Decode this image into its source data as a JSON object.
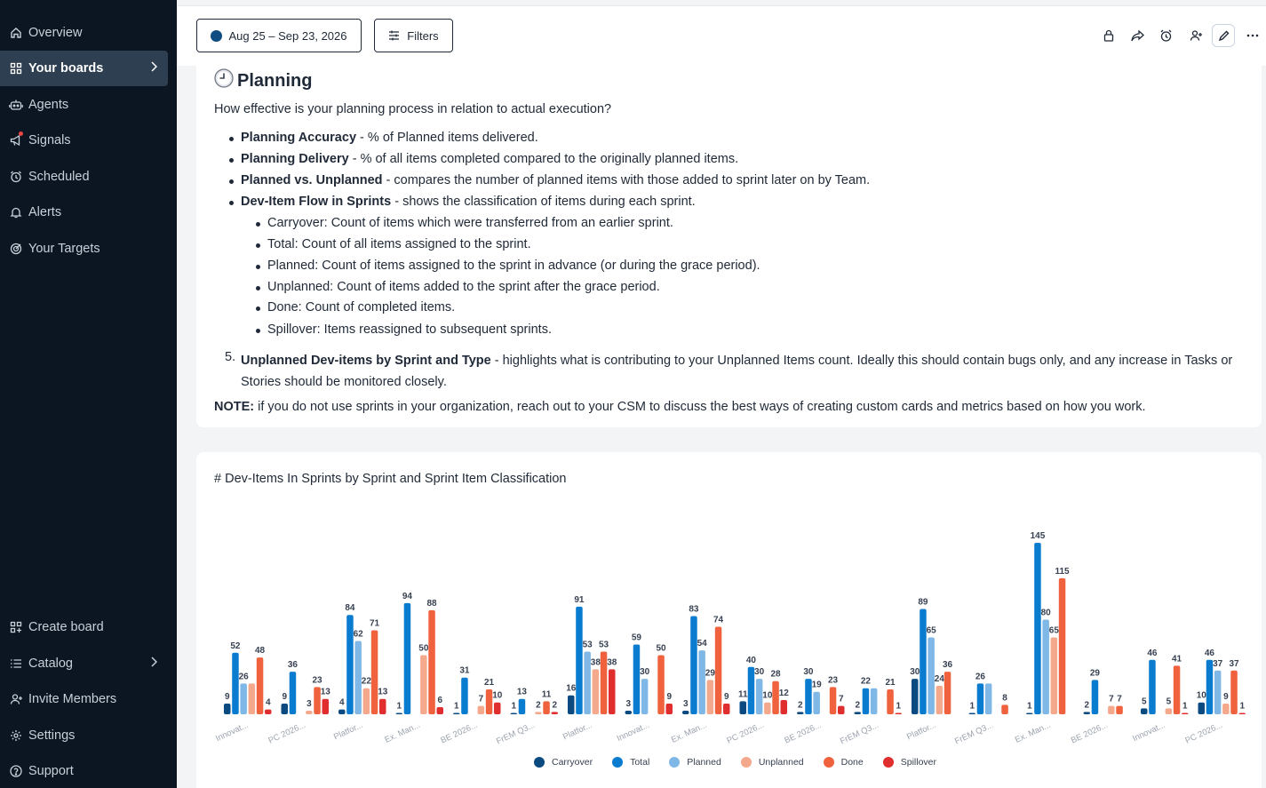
{
  "sidebar": {
    "items": [
      {
        "label": "Overview",
        "icon": "home-icon"
      },
      {
        "label": "Your boards",
        "icon": "grid-icon"
      },
      {
        "label": "Agents",
        "icon": "robot-icon"
      },
      {
        "label": "Signals",
        "icon": "megaphone-icon"
      },
      {
        "label": "Scheduled",
        "icon": "alarm-icon"
      },
      {
        "label": "Alerts",
        "icon": "bell-icon"
      },
      {
        "label": "Your Targets",
        "icon": "target-icon"
      }
    ],
    "bottom": [
      {
        "label": "Create board",
        "icon": "grid-plus-icon"
      },
      {
        "label": "Catalog",
        "icon": "list-icon"
      },
      {
        "label": "Invite Members",
        "icon": "user-plus-icon"
      },
      {
        "label": "Settings",
        "icon": "gear-icon"
      },
      {
        "label": "Support",
        "icon": "help-icon"
      }
    ]
  },
  "topbar": {
    "date_range": "Aug 25 – Sep 23, 2026",
    "filters_label": "Filters"
  },
  "planning": {
    "title": "Planning",
    "intro": "How effective is your planning process in relation to actual execution?",
    "bullets": [
      {
        "term": "Planning Accuracy",
        "desc": " - % of Planned items delivered."
      },
      {
        "term": "Planning Delivery",
        "desc": " - % of all items completed compared to the originally planned items."
      },
      {
        "term": "Planned vs. Unplanned",
        "desc": " - compares the number of planned items with those added to sprint later on by Team."
      },
      {
        "term": "Dev-Item Flow in Sprints",
        "desc": " - shows the classification of items during each sprint."
      }
    ],
    "sub_bullets": [
      "Carryover: Count of items which were transferred from an earlier sprint.",
      "Total: Count of all items assigned to the sprint.",
      "Planned: Count of items assigned to the sprint in advance (or during the grace period).",
      "Unplanned: Count of items added to the sprint after the grace period.",
      "Done: Count of completed items.",
      "Spillover: Items reassigned to subsequent sprints."
    ],
    "item5_num": "5.",
    "item5_term": "Unplanned Dev-items by Sprint and Type",
    "item5_desc": " - highlights what is contributing to your Unplanned Items count. Ideally this should contain bugs only, and any increase in Tasks or Stories should be monitored closely.",
    "note_label": "NOTE:",
    "note_text": " if you do not use sprints in your organization, reach out to your CSM to discuss the best ways of creating custom cards and metrics based on how you work."
  },
  "chart_data": {
    "type": "bar",
    "title": "# Dev-Items In Sprints by Sprint and Sprint Item Classification",
    "categories": [
      "Innovat...",
      "PC 2026...",
      "Platfor...",
      "Ex. Man...",
      "BE 2026...",
      "FrEM Q3...",
      "Platfor...",
      "Innovat...",
      "Ex. Man...",
      "PC 2026...",
      "BE 2026...",
      "FrEM Q3...",
      "Platfor...",
      "FrEM Q3...",
      "Ex. Man...",
      "BE 2026...",
      "Innovat...",
      "PC 2026..."
    ],
    "series": [
      {
        "name": "Carryover",
        "color": "#0b4a80",
        "values": [
          9,
          9,
          4,
          1,
          1,
          1,
          16,
          3,
          3,
          11,
          2,
          2,
          30,
          1,
          1,
          2,
          5,
          10
        ]
      },
      {
        "name": "Total",
        "color": "#0a7cd0",
        "values": [
          52,
          36,
          84,
          94,
          31,
          13,
          91,
          59,
          83,
          40,
          30,
          22,
          89,
          26,
          145,
          29,
          46,
          46
        ]
      },
      {
        "name": "Planned",
        "color": "#7fb8e6",
        "values": [
          26,
          0,
          62,
          0,
          0,
          0,
          53,
          30,
          54,
          30,
          19,
          22,
          65,
          26,
          80,
          0,
          0,
          37
        ]
      },
      {
        "name": "Unplanned",
        "color": "#f5a98c",
        "values": [
          26,
          3,
          22,
          50,
          7,
          2,
          38,
          0,
          29,
          10,
          0,
          0,
          24,
          0,
          65,
          7,
          5,
          9
        ]
      },
      {
        "name": "Done",
        "color": "#f0623d",
        "values": [
          48,
          23,
          71,
          88,
          21,
          11,
          53,
          50,
          74,
          28,
          23,
          21,
          36,
          8,
          115,
          7,
          41,
          37
        ]
      },
      {
        "name": "Spillover",
        "color": "#e02d2d",
        "values": [
          4,
          13,
          13,
          6,
          10,
          2,
          38,
          9,
          9,
          12,
          7,
          1,
          0,
          0,
          0,
          0,
          1,
          1
        ]
      }
    ],
    "data_labels": [
      [
        9,
        52,
        26,
        null,
        48,
        4
      ],
      [
        9,
        36,
        null,
        3,
        23,
        13
      ],
      [
        4,
        84,
        62,
        22,
        71,
        13
      ],
      [
        1,
        94,
        null,
        50,
        88,
        6
      ],
      [
        1,
        31,
        null,
        7,
        21,
        10
      ],
      [
        1,
        13,
        null,
        2,
        11,
        2
      ],
      [
        16,
        91,
        53,
        38,
        53,
        38
      ],
      [
        3,
        59,
        30,
        null,
        50,
        9
      ],
      [
        3,
        83,
        54,
        29,
        74,
        9
      ],
      [
        11,
        40,
        30,
        10,
        28,
        12
      ],
      [
        2,
        30,
        19,
        null,
        23,
        7
      ],
      [
        2,
        22,
        null,
        null,
        21,
        1
      ],
      [
        30,
        89,
        65,
        24,
        36,
        null
      ],
      [
        1,
        26,
        null,
        null,
        8,
        null
      ],
      [
        1,
        145,
        80,
        65,
        115,
        null
      ],
      [
        2,
        29,
        null,
        7,
        7,
        null
      ],
      [
        5,
        46,
        null,
        5,
        41,
        1
      ],
      [
        10,
        46,
        37,
        9,
        37,
        1
      ]
    ],
    "ylim": [
      0,
      145
    ],
    "legend_position": "bottom"
  }
}
